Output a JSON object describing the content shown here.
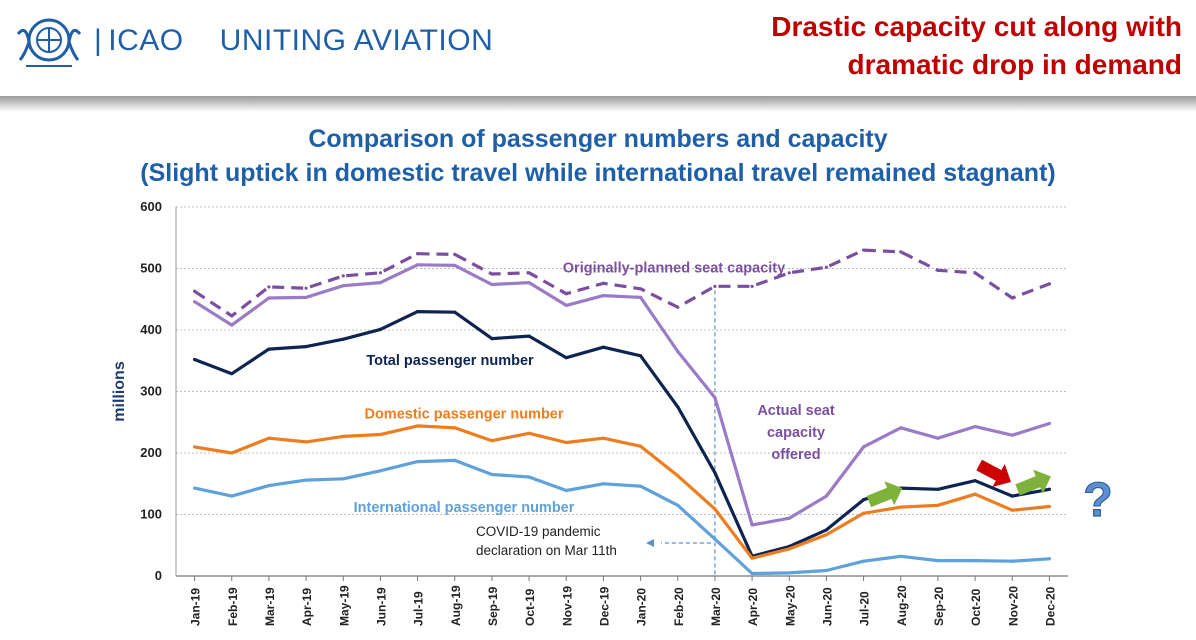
{
  "header": {
    "logo_bar": "|",
    "logo_name": "ICAO",
    "logo_tagline": "UNITING AVIATION",
    "headline_line1": "Drastic capacity cut along with",
    "headline_line2": "dramatic drop in demand"
  },
  "colors": {
    "headline": "#c00000",
    "title": "#1f5fa8",
    "planned": "#7b4fa0",
    "actual": "#9b7bc6",
    "total": "#0e2450",
    "domestic": "#ee7d1f",
    "international": "#5fa1db",
    "up_arrow": "#7fb23c",
    "down_arrow": "#cc0000",
    "question": "#5a8fd0"
  },
  "icons": [
    "icao-emblem-icon",
    "up-arrow-icon",
    "down-arrow-icon",
    "question-mark-icon"
  ],
  "chart_data": {
    "type": "line",
    "title": "Comparison of passenger numbers and capacity",
    "subtitle": "(Slight uptick in domestic travel while international travel remained stagnant)",
    "ylabel": "millions",
    "xlabel": "",
    "ylim": [
      0,
      600
    ],
    "yticks": [
      "0",
      "100",
      "200",
      "300",
      "400",
      "500",
      "600"
    ],
    "grid": true,
    "categories": [
      "Jan-19",
      "Feb-19",
      "Mar-19",
      "Apr-19",
      "May-19",
      "Jun-19",
      "Jul-19",
      "Aug-19",
      "Sep-19",
      "Oct-19",
      "Nov-19",
      "Dec-19",
      "Jan-20",
      "Feb-20",
      "Mar-20",
      "Apr-20",
      "May-20",
      "Jun-20",
      "Jul-20",
      "Aug-20",
      "Sep-20",
      "Oct-20",
      "Nov-20",
      "Dec-20"
    ],
    "series": [
      {
        "name": "Originally-planned seat capacity",
        "style": "dashed",
        "values": [
          463,
          423,
          470,
          468,
          488,
          493,
          524,
          523,
          491,
          493,
          459,
          476,
          467,
          437,
          471,
          471,
          493,
          502,
          530,
          527,
          497,
          493,
          452,
          475
        ]
      },
      {
        "name": "Actual seat capacity offered",
        "style": "solid",
        "values": [
          446,
          408,
          452,
          453,
          472,
          477,
          506,
          505,
          474,
          477,
          440,
          456,
          453,
          365,
          290,
          83,
          94,
          130,
          210,
          241,
          224,
          243,
          229,
          248
        ]
      },
      {
        "name": "Total passenger number",
        "style": "solid",
        "values": [
          352,
          329,
          369,
          373,
          385,
          401,
          430,
          429,
          386,
          390,
          355,
          372,
          358,
          275,
          168,
          32,
          48,
          75,
          124,
          143,
          141,
          155,
          130,
          141
        ]
      },
      {
        "name": "Domestic passenger number",
        "style": "solid",
        "values": [
          210,
          200,
          224,
          218,
          227,
          230,
          244,
          241,
          220,
          232,
          217,
          224,
          211,
          163,
          109,
          29,
          44,
          67,
          102,
          112,
          115,
          133,
          107,
          113
        ]
      },
      {
        "name": "International passenger number",
        "style": "solid",
        "values": [
          143,
          130,
          147,
          156,
          158,
          171,
          186,
          188,
          165,
          161,
          139,
          150,
          146,
          115,
          60,
          4,
          5,
          9,
          24,
          32,
          25,
          25,
          24,
          28
        ]
      }
    ],
    "series_labels": {
      "planned": "Originally-planned seat capacity",
      "actual_line1": "Actual seat",
      "actual_line2": "capacity",
      "actual_line3": "offered",
      "total": "Total passenger number",
      "domestic": "Domestic passenger number",
      "international": "International passenger number"
    },
    "annotations": {
      "pandemic_line1": "COVID-19 pandemic",
      "pandemic_line2": "declaration on Mar 11th",
      "pandemic_month": "Mar-20",
      "question": "?",
      "up_arrow_months": [
        "Jul-20",
        "Nov-20"
      ],
      "down_arrow_months": [
        "Oct-20"
      ]
    }
  }
}
